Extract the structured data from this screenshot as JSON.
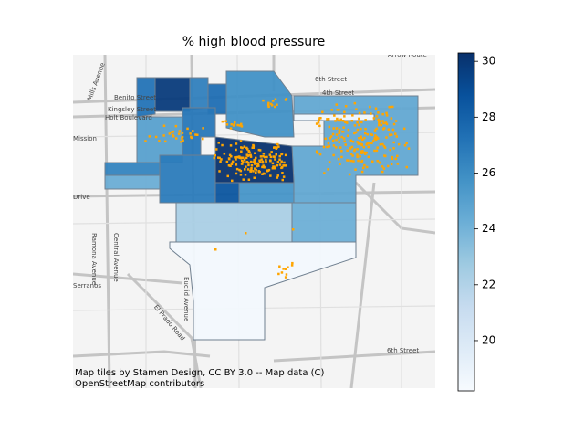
{
  "chart_data": {
    "type": "choropleth",
    "title": "% high blood pressure",
    "values": [
      18.5,
      22.3,
      24.2,
      24.6,
      18.4,
      30.2,
      29.8,
      27.2,
      26.6,
      27.4,
      25.8,
      25.0,
      27.0,
      26.4,
      24.3,
      26.8,
      28.6,
      25.6
    ],
    "color_lim": [
      18.2,
      30.3
    ],
    "color_ticks": [
      20,
      22,
      24,
      26,
      28,
      30
    ],
    "point_color": "#ffa500",
    "map_labels": [
      "6th Street",
      "4th Street",
      "Arrow Route",
      "Benito Street",
      "Kingsley Street",
      "Holt Boulevard",
      "Mission",
      "Mills Avenue",
      "Drive",
      "Ramona Avenue",
      "Central Avenue",
      "Euclid Avenue",
      "El Prado Road",
      "Serranos",
      "6th Street"
    ],
    "attribution": [
      "Map tiles by Stamen Design, CC BY 3.0 -- Map data (C)",
      "OpenStreetMap contributors"
    ]
  }
}
